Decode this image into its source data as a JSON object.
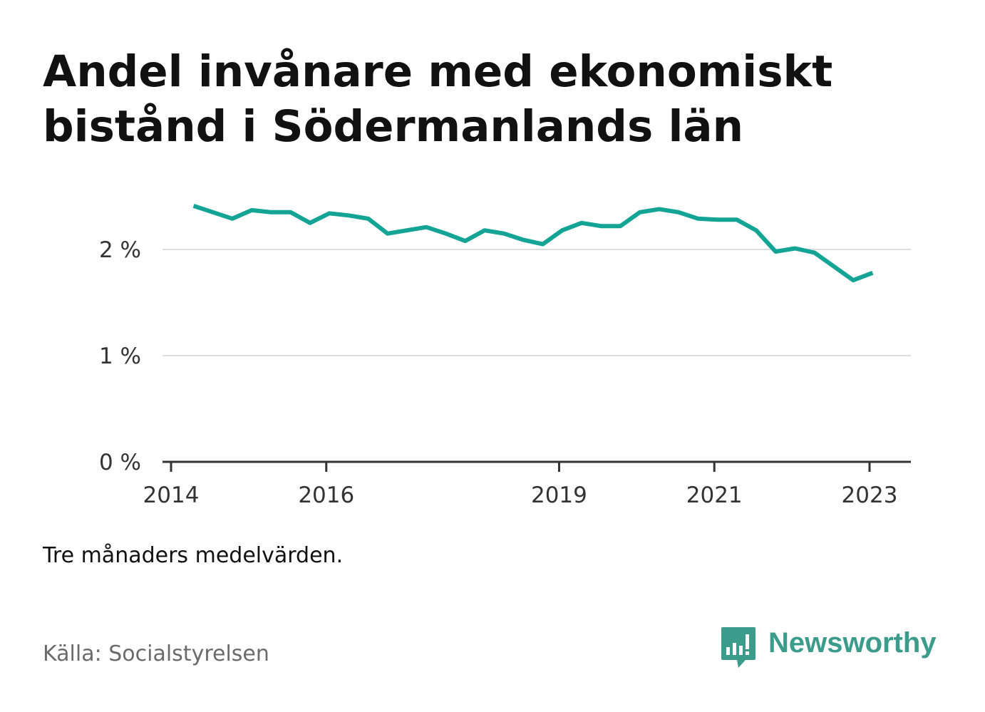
{
  "title_lines": [
    "Andel invånare med ekonomiskt",
    "bistånd i Södermanlands län"
  ],
  "note": "Tre månaders medelvärden.",
  "source": "Källa: Socialstyrelsen",
  "brand": {
    "name": "Newsworthy",
    "icon": "newsworthy-logo-icon",
    "color": "#3c9c8c"
  },
  "colors": {
    "line": "#14a496",
    "grid": "#dddddd",
    "axis": "#333333"
  },
  "chart_data": {
    "type": "line",
    "title": "Andel invånare med ekonomiskt bistånd i Södermanlands län",
    "ylim": [
      0,
      2.5
    ],
    "yticks": [
      0,
      1,
      2
    ],
    "ytick_labels": [
      "0 %",
      "1 %",
      "2 %"
    ],
    "xlim": [
      2014.0,
      2023.55
    ],
    "xticks": [
      2014,
      2016,
      2019,
      2021,
      2023
    ],
    "xtick_labels": [
      "2014",
      "2016",
      "2019",
      "2021",
      "2023"
    ],
    "grid": true,
    "series": [
      {
        "x": [
          2014.29,
          2014.54,
          2014.79,
          2015.04,
          2015.29,
          2015.54,
          2015.79,
          2016.04,
          2016.29,
          2016.54,
          2016.79,
          2017.04,
          2017.29,
          2017.54,
          2017.79,
          2018.04,
          2018.29,
          2018.54,
          2018.79,
          2019.04,
          2019.29,
          2019.54,
          2019.79,
          2020.04,
          2020.29,
          2020.54,
          2020.79,
          2021.04,
          2021.29,
          2021.54,
          2021.79,
          2022.04,
          2022.29,
          2022.54,
          2022.79,
          2023.04
        ],
        "y": [
          2.41,
          2.35,
          2.29,
          2.37,
          2.35,
          2.35,
          2.25,
          2.34,
          2.32,
          2.29,
          2.15,
          2.18,
          2.21,
          2.15,
          2.08,
          2.18,
          2.15,
          2.09,
          2.05,
          2.18,
          2.25,
          2.22,
          2.22,
          2.35,
          2.38,
          2.35,
          2.29,
          2.28,
          2.28,
          2.18,
          1.98,
          2.01,
          1.97,
          1.84,
          1.71,
          1.78
        ]
      }
    ]
  }
}
